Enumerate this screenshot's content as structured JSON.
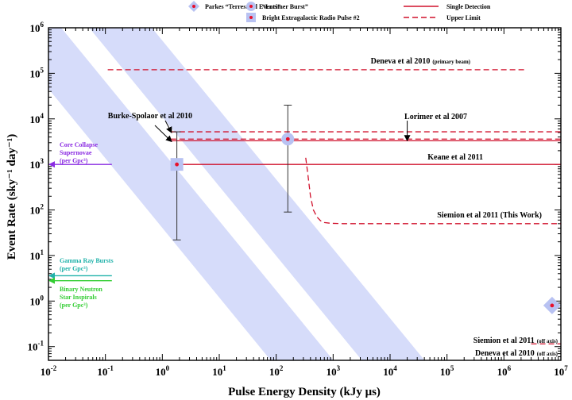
{
  "chart_data": {
    "type": "scatter",
    "xlabel": "Pulse Energy Density (kJy μs)",
    "ylabel": "Event Rate (sky⁻¹ day⁻¹)",
    "x_scale": "log",
    "y_scale": "log",
    "xlim": [
      0.01,
      10000000
    ],
    "ylim": [
      0.05,
      1000000
    ],
    "x_ticks": [
      {
        "value": 0.01,
        "base": "10",
        "exp": "-2"
      },
      {
        "value": 0.1,
        "base": "10",
        "exp": "-1"
      },
      {
        "value": 1,
        "base": "10",
        "exp": "0"
      },
      {
        "value": 10,
        "base": "10",
        "exp": "1"
      },
      {
        "value": 100,
        "base": "10",
        "exp": "2"
      },
      {
        "value": 1000,
        "base": "10",
        "exp": "3"
      },
      {
        "value": 10000,
        "base": "10",
        "exp": "4"
      },
      {
        "value": 100000,
        "base": "10",
        "exp": "5"
      },
      {
        "value": 1000000,
        "base": "10",
        "exp": "6"
      },
      {
        "value": 10000000,
        "base": "10",
        "exp": "7"
      }
    ],
    "y_ticks": [
      {
        "value": 0.1,
        "base": "10",
        "exp": "-1"
      },
      {
        "value": 1,
        "base": "10",
        "exp": "0"
      },
      {
        "value": 10,
        "base": "10",
        "exp": "1"
      },
      {
        "value": 100,
        "base": "10",
        "exp": "2"
      },
      {
        "value": 1000,
        "base": "10",
        "exp": "3"
      },
      {
        "value": 10000,
        "base": "10",
        "exp": "4"
      },
      {
        "value": 100000,
        "base": "10",
        "exp": "5"
      },
      {
        "value": 1000000,
        "base": "10",
        "exp": "6"
      }
    ],
    "bands": [
      {
        "name": "band-left",
        "x_at_top": 0.00133,
        "x_at_bottom": 80,
        "width_dex": 1.1
      },
      {
        "name": "band-right",
        "x_at_top": 0.052,
        "x_at_bottom": 3200,
        "width_dex": 1.1
      }
    ],
    "limits": [
      {
        "label": "Deneva et al 2010",
        "sublabel": "(primary beam)",
        "style": "dashed",
        "x_start": 0.11,
        "x_end": 2500000,
        "y": 120000
      },
      {
        "label": "Lorimer et al 2007",
        "sublabel": "",
        "style": "dashed",
        "x_start": 1.4,
        "x_end": 10000000,
        "y": 5200
      },
      {
        "label": "",
        "sublabel": "",
        "style": "dashed",
        "x_start": 1.4,
        "x_end": 10000000,
        "y": 3600
      },
      {
        "label": "",
        "sublabel": "",
        "style": "solid",
        "x_start": 1.4,
        "x_end": 10000000,
        "y": 3300
      },
      {
        "label": "Keane et al 2011",
        "sublabel": "",
        "style": "solid",
        "x_start": 1.4,
        "x_end": 10000000,
        "y": 1000
      },
      {
        "label": "Deneva et al 2010",
        "sublabel": "(off axis)",
        "style": "dashed",
        "x_start": 3000000,
        "x_end": 10000000,
        "y": 0.115
      }
    ],
    "siemion_curve": {
      "label": "Siemion et al 2011 (This Work)",
      "style": "dashed",
      "x": [
        330,
        360,
        400,
        450,
        520,
        600,
        700,
        900,
        1500,
        10000000
      ],
      "y": [
        1400,
        600,
        200,
        100,
        70,
        58,
        53,
        51,
        50,
        50
      ]
    },
    "siemion_off_axis": {
      "label": "Siemion et al 2011",
      "sublabel": "(off axis)"
    },
    "points": [
      {
        "series": "Bright Extragalactic Radio Pulse #2",
        "marker": "square",
        "x": 1.8,
        "y": 1000,
        "err_low": 22,
        "err_high": 5200
      },
      {
        "series": "Lorimer Burst",
        "marker": "circle",
        "x": 160,
        "y": 3600,
        "err_low": 90,
        "err_high": 20000
      },
      {
        "series": "Parkes Terrestrial Events",
        "marker": "diamond",
        "x": 7000000,
        "y": 0.8,
        "err_low": null,
        "err_high": null
      }
    ],
    "burke_label": "Burke-Spolaor et al 2010",
    "lorimer_arrow_x": 20000,
    "side_arrows": [
      {
        "label": "Core Collapse",
        "label2": "Supernovae",
        "label3": "(per Gpc³)",
        "y": 1000,
        "color": "#8a2be2"
      },
      {
        "label": "Gamma Ray Bursts",
        "label2": "(per Gpc³)",
        "label3": "",
        "y": 3.6,
        "color": "#20b2aa"
      },
      {
        "label": "Binary Neutron",
        "label2": "Star Inspirals",
        "label3": "(per Gpc³)",
        "y": 2.8,
        "color": "#32cd32"
      }
    ],
    "legend": [
      {
        "label": "Parkes “Terrestrial Events”",
        "marker": "diamond"
      },
      {
        "label": "“Lorimer Burst”",
        "marker": "circle"
      },
      {
        "label": "Bright Extragalactic Radio Pulse #2",
        "marker": "square"
      },
      {
        "label": "Single Detection",
        "marker": "solid-line"
      },
      {
        "label": "Upper Limit",
        "marker": "dashed-line"
      }
    ],
    "colors": {
      "band": "#d6dcfa",
      "marker": "#b8c2f2",
      "dot": "#e8102b",
      "limit": "#d0102b"
    }
  }
}
